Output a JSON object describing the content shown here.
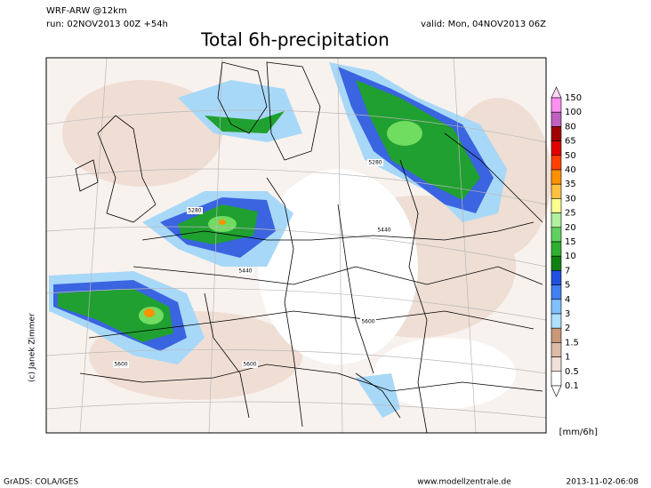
{
  "header": {
    "model": "WRF-ARW @12km",
    "run": "run: 02NOV2013 00Z +54h",
    "valid": "valid: Mon, 04NOV2013 06Z",
    "title": "Total 6h-precipitation"
  },
  "map": {
    "contour_labels": [
      "5280",
      "5280",
      "5440",
      "5440",
      "5600",
      "5600",
      "5600"
    ],
    "credit": "(c) Janek Zimmer"
  },
  "legend": {
    "unit": "[mm/6h]",
    "entries": [
      {
        "label": "150",
        "color": "#ffd8f8"
      },
      {
        "label": "100",
        "color": "#ff90f0"
      },
      {
        "label": "80",
        "color": "#c060c0"
      },
      {
        "label": "65",
        "color": "#a00000"
      },
      {
        "label": "50",
        "color": "#e00000"
      },
      {
        "label": "40",
        "color": "#ff4000"
      },
      {
        "label": "35",
        "color": "#ff9000"
      },
      {
        "label": "30",
        "color": "#ffc040"
      },
      {
        "label": "25",
        "color": "#ffff90"
      },
      {
        "label": "20",
        "color": "#b0f0a0"
      },
      {
        "label": "15",
        "color": "#60d060"
      },
      {
        "label": "10",
        "color": "#30b030"
      },
      {
        "label": "7",
        "color": "#108010"
      },
      {
        "label": "5",
        "color": "#2050e0"
      },
      {
        "label": "4",
        "color": "#4080f0"
      },
      {
        "label": "3",
        "color": "#80c0ff"
      },
      {
        "label": "2",
        "color": "#b0e0ff"
      },
      {
        "label": "1.5",
        "color": "#c89878"
      },
      {
        "label": "1",
        "color": "#dcbca8"
      },
      {
        "label": "0.5",
        "color": "#f0e0d8"
      },
      {
        "label": "0.1",
        "color": "#ffffff"
      }
    ]
  },
  "footer": {
    "left": "GrADS: COLA/IGES",
    "center": "www.modellzentrale.de",
    "right": "2013-11-02-06:08"
  }
}
